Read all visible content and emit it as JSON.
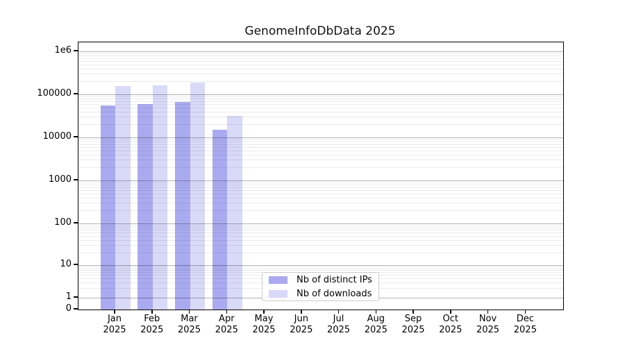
{
  "title": "GenomeInfoDbData 2025",
  "colors": {
    "distinct_ips_bar": "#aaaaf0",
    "downloads_bar": "#d9d9f8",
    "axis": "#000000",
    "legend_border": "#cccccc"
  },
  "legend": {
    "items": [
      {
        "label": "Nb of distinct IPs",
        "color": "#aaaaf0"
      },
      {
        "label": "Nb of downloads",
        "color": "#d9d9f8"
      }
    ]
  },
  "chart_data": {
    "type": "bar",
    "title": "GenomeInfoDbData 2025",
    "xlabel": "",
    "ylabel": "",
    "y_scale": "symlog",
    "ylim": [
      0,
      1600000
    ],
    "grid": "both (major + log minor horizontal gridlines)",
    "legend_position": "lower center, inside axes",
    "categories": [
      "Jan 2025",
      "Feb 2025",
      "Mar 2025",
      "Apr 2025",
      "May 2025",
      "Jun 2025",
      "Jul 2025",
      "Aug 2025",
      "Sep 2025",
      "Oct 2025",
      "Nov 2025",
      "Dec 2025"
    ],
    "x_tick_month": [
      "Jan",
      "Feb",
      "Mar",
      "Apr",
      "May",
      "Jun",
      "Jul",
      "Aug",
      "Sep",
      "Oct",
      "Nov",
      "Dec"
    ],
    "x_tick_year": "2025",
    "y_ticks": [
      {
        "label": "1e6",
        "value": 1000000
      },
      {
        "label": "100000",
        "value": 100000
      },
      {
        "label": "10000",
        "value": 10000
      },
      {
        "label": "1000",
        "value": 1000
      },
      {
        "label": "100",
        "value": 100
      },
      {
        "label": "10",
        "value": 10
      },
      {
        "label": "1",
        "value": 1
      },
      {
        "label": "0",
        "value": 0
      }
    ],
    "series": [
      {
        "name": "Nb of distinct IPs",
        "color": "#aaaaf0",
        "values": [
          55000,
          60000,
          66000,
          15000,
          0,
          0,
          0,
          0,
          0,
          0,
          0,
          0
        ]
      },
      {
        "name": "Nb of downloads",
        "color": "#d9d9f8",
        "values": [
          158000,
          160000,
          190000,
          32000,
          0,
          0,
          0,
          0,
          0,
          0,
          0,
          0
        ]
      }
    ]
  }
}
